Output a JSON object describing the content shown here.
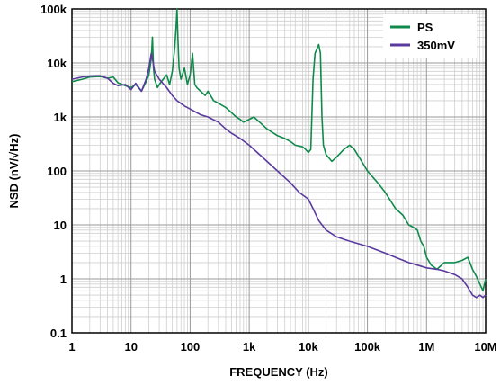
{
  "chart_data": {
    "type": "line",
    "title": "",
    "xlabel": "FREQUENCY (Hz)",
    "ylabel": "NSD (nV/√Hz)",
    "x_scale": "log",
    "y_scale": "log",
    "xlim": [
      1,
      10000000
    ],
    "ylim": [
      0.1,
      100000
    ],
    "grid": true,
    "legend_position": "top-right",
    "x_ticks": [
      {
        "value": 1,
        "label": "1"
      },
      {
        "value": 10,
        "label": "10"
      },
      {
        "value": 100,
        "label": "100"
      },
      {
        "value": 1000,
        "label": "1k"
      },
      {
        "value": 10000,
        "label": "10k"
      },
      {
        "value": 100000,
        "label": "100k"
      },
      {
        "value": 1000000,
        "label": "1M"
      },
      {
        "value": 10000000,
        "label": "10M"
      }
    ],
    "y_ticks": [
      {
        "value": 0.1,
        "label": "0.1"
      },
      {
        "value": 1,
        "label": "1"
      },
      {
        "value": 10,
        "label": "10"
      },
      {
        "value": 100,
        "label": "100"
      },
      {
        "value": 1000,
        "label": "1k"
      },
      {
        "value": 10000,
        "label": "10k"
      },
      {
        "value": 100000,
        "label": "100k"
      }
    ],
    "series": [
      {
        "name": "PS",
        "color": "#0f8a4b",
        "points": [
          [
            1,
            4500
          ],
          [
            1.5,
            5000
          ],
          [
            2,
            5500
          ],
          [
            3,
            5600
          ],
          [
            4,
            5200
          ],
          [
            5,
            5500
          ],
          [
            6,
            4300
          ],
          [
            8,
            3800
          ],
          [
            10,
            3500
          ],
          [
            12,
            4000
          ],
          [
            15,
            3000
          ],
          [
            18,
            4500
          ],
          [
            20,
            6000
          ],
          [
            22,
            12000
          ],
          [
            23,
            30000
          ],
          [
            24,
            8000
          ],
          [
            25,
            5000
          ],
          [
            28,
            3500
          ],
          [
            30,
            4000
          ],
          [
            35,
            5000
          ],
          [
            40,
            6000
          ],
          [
            45,
            4000
          ],
          [
            50,
            7000
          ],
          [
            55,
            20000
          ],
          [
            58,
            50000
          ],
          [
            60,
            100000
          ],
          [
            62,
            30000
          ],
          [
            65,
            8000
          ],
          [
            70,
            5000
          ],
          [
            80,
            8000
          ],
          [
            90,
            4000
          ],
          [
            100,
            6000
          ],
          [
            110,
            15000
          ],
          [
            120,
            4000
          ],
          [
            130,
            3500
          ],
          [
            150,
            3000
          ],
          [
            180,
            2500
          ],
          [
            200,
            3000
          ],
          [
            250,
            2000
          ],
          [
            300,
            1800
          ],
          [
            400,
            1500
          ],
          [
            500,
            1200
          ],
          [
            600,
            1000
          ],
          [
            700,
            900
          ],
          [
            800,
            800
          ],
          [
            1000,
            900
          ],
          [
            1200,
            1000
          ],
          [
            1500,
            800
          ],
          [
            2000,
            600
          ],
          [
            3000,
            450
          ],
          [
            4000,
            400
          ],
          [
            5000,
            350
          ],
          [
            6000,
            300
          ],
          [
            8000,
            280
          ],
          [
            9000,
            250
          ],
          [
            10000,
            220
          ],
          [
            11000,
            250
          ],
          [
            12000,
            5000
          ],
          [
            13000,
            15000
          ],
          [
            15000,
            22000
          ],
          [
            16000,
            15000
          ],
          [
            17000,
            1000
          ],
          [
            18000,
            300
          ],
          [
            20000,
            200
          ],
          [
            25000,
            150
          ],
          [
            30000,
            180
          ],
          [
            40000,
            250
          ],
          [
            50000,
            300
          ],
          [
            60000,
            250
          ],
          [
            80000,
            150
          ],
          [
            100000,
            100
          ],
          [
            150000,
            60
          ],
          [
            200000,
            40
          ],
          [
            300000,
            20
          ],
          [
            400000,
            15
          ],
          [
            500000,
            10
          ],
          [
            600000,
            9
          ],
          [
            700000,
            8
          ],
          [
            800000,
            5
          ],
          [
            900000,
            4
          ],
          [
            1000000,
            2.5
          ],
          [
            1200000,
            1.8
          ],
          [
            1500000,
            1.5
          ],
          [
            2000000,
            2
          ],
          [
            3000000,
            2
          ],
          [
            4000000,
            2.2
          ],
          [
            5000000,
            2.5
          ],
          [
            6000000,
            1.5
          ],
          [
            7000000,
            1.1
          ],
          [
            8000000,
            0.8
          ],
          [
            9000000,
            0.6
          ],
          [
            10000000,
            1
          ]
        ]
      },
      {
        "name": "350mV",
        "color": "#5a3a9e",
        "points": [
          [
            1,
            5000
          ],
          [
            1.5,
            5500
          ],
          [
            2,
            5700
          ],
          [
            3,
            5800
          ],
          [
            4,
            5200
          ],
          [
            5,
            4200
          ],
          [
            6,
            3800
          ],
          [
            8,
            4000
          ],
          [
            10,
            3200
          ],
          [
            12,
            4200
          ],
          [
            15,
            3000
          ],
          [
            18,
            5000
          ],
          [
            20,
            8000
          ],
          [
            22,
            15000
          ],
          [
            23,
            12000
          ],
          [
            25,
            7000
          ],
          [
            30,
            5000
          ],
          [
            40,
            3500
          ],
          [
            50,
            2500
          ],
          [
            60,
            2000
          ],
          [
            80,
            1600
          ],
          [
            100,
            1400
          ],
          [
            150,
            1100
          ],
          [
            200,
            1000
          ],
          [
            300,
            800
          ],
          [
            400,
            600
          ],
          [
            500,
            500
          ],
          [
            700,
            400
          ],
          [
            1000,
            300
          ],
          [
            1500,
            200
          ],
          [
            2000,
            150
          ],
          [
            3000,
            100
          ],
          [
            5000,
            60
          ],
          [
            7000,
            40
          ],
          [
            10000,
            30
          ],
          [
            12000,
            20
          ],
          [
            15000,
            12
          ],
          [
            20000,
            8
          ],
          [
            30000,
            6
          ],
          [
            50000,
            5
          ],
          [
            100000,
            4
          ],
          [
            200000,
            3
          ],
          [
            300000,
            2.5
          ],
          [
            500000,
            2
          ],
          [
            700000,
            1.8
          ],
          [
            1000000,
            1.6
          ],
          [
            1500000,
            1.5
          ],
          [
            2000000,
            1.4
          ],
          [
            3000000,
            1.2
          ],
          [
            4000000,
            1
          ],
          [
            5000000,
            0.7
          ],
          [
            6000000,
            0.5
          ],
          [
            7000000,
            0.45
          ],
          [
            8000000,
            0.5
          ],
          [
            9000000,
            0.45
          ],
          [
            10000000,
            0.5
          ]
        ]
      }
    ]
  }
}
